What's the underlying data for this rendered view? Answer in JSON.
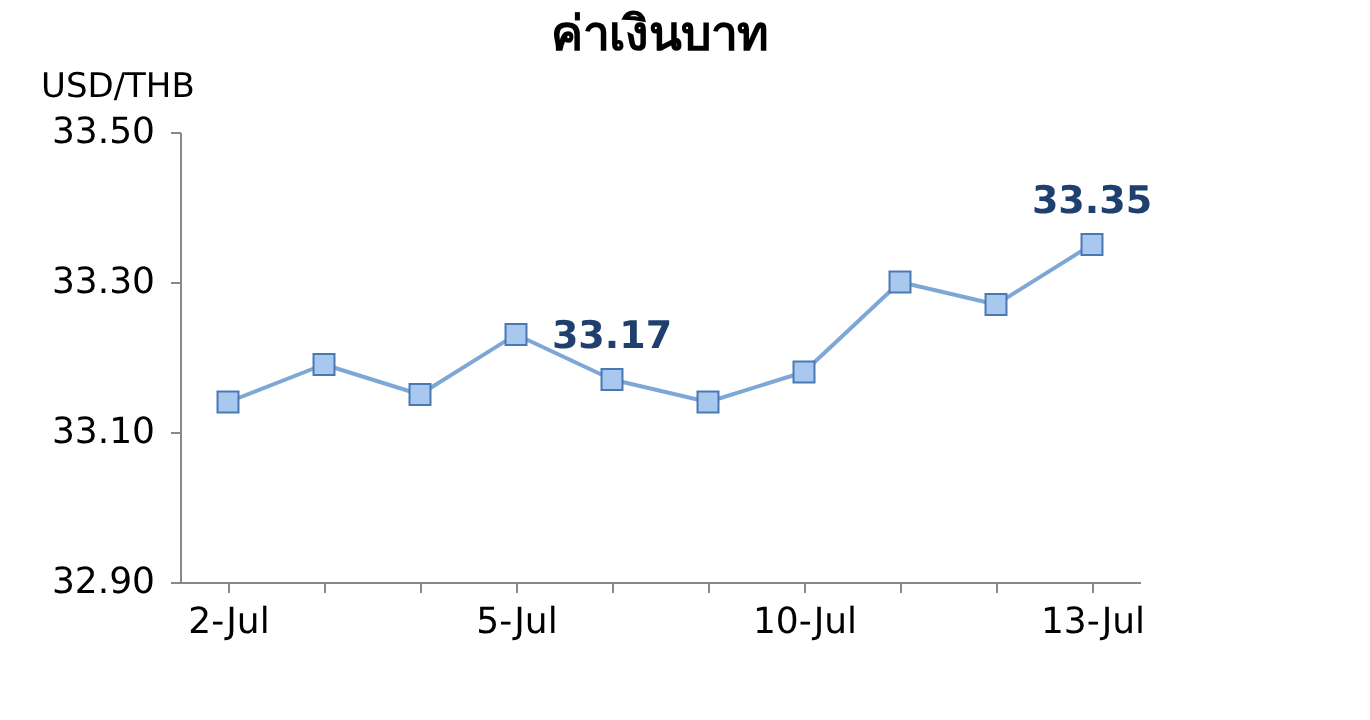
{
  "chart_data": {
    "type": "line",
    "title": "ค่าเงินบาท",
    "ylabel": "USD/THB",
    "categories": [
      "2-Jul",
      null,
      null,
      "5-Jul",
      null,
      null,
      "10-Jul",
      null,
      null,
      "13-Jul"
    ],
    "series": [
      {
        "color": "#7fa7d6",
        "values": [
          33.14,
          33.19,
          33.15,
          33.23,
          33.17,
          33.14,
          33.18,
          33.3,
          33.27,
          33.35
        ],
        "value_labels": [
          null,
          null,
          null,
          null,
          "33.17",
          null,
          null,
          null,
          null,
          "33.35"
        ]
      }
    ],
    "ylim": [
      32.9,
      33.5
    ],
    "yticks": [
      {
        "value": 32.9,
        "label": "32.90"
      },
      {
        "value": 33.1,
        "label": "33.10"
      },
      {
        "value": 33.3,
        "label": "33.30"
      },
      {
        "value": 33.5,
        "label": "33.50"
      }
    ],
    "marker": "square",
    "grid": false
  }
}
